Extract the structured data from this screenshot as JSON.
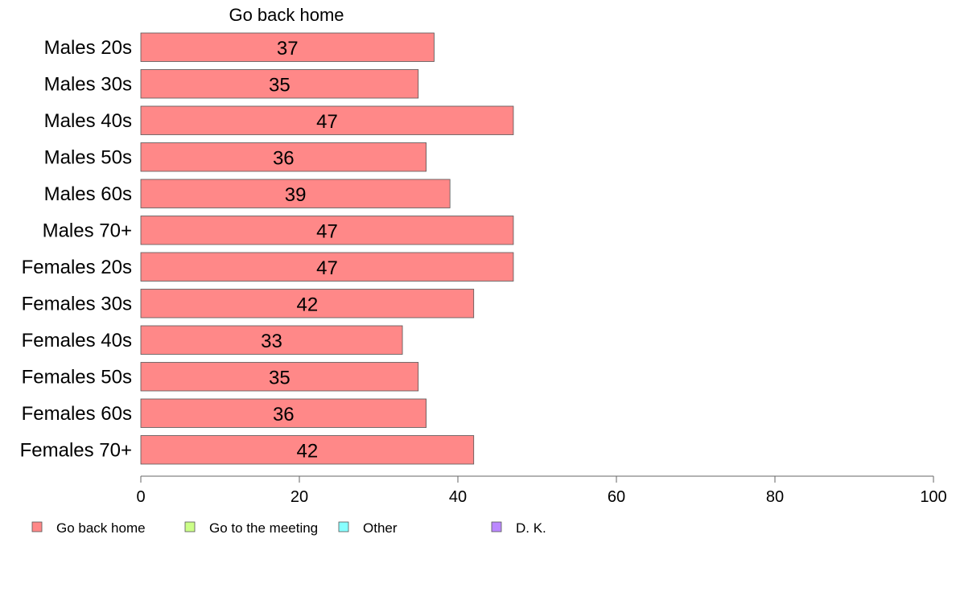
{
  "chart_data": {
    "type": "bar",
    "orientation": "horizontal",
    "categories": [
      "Males 20s",
      "Males 30s",
      "Males 40s",
      "Males 50s",
      "Males 60s",
      "Males 70+",
      "Females 20s",
      "Females 30s",
      "Females 40s",
      "Females 50s",
      "Females 60s",
      "Females 70+"
    ],
    "series": [
      {
        "name": "Go back home",
        "color": "#ff8888",
        "values": [
          37,
          35,
          47,
          36,
          39,
          47,
          47,
          42,
          33,
          35,
          36,
          42
        ]
      }
    ],
    "series_title": "Go back home",
    "xlim": [
      0,
      100
    ],
    "xticks": [
      0,
      20,
      40,
      60,
      80,
      100
    ],
    "grid": false,
    "legend": {
      "position": "bottom",
      "items": [
        {
          "label": "Go back home",
          "color": "#ff8888"
        },
        {
          "label": "Go to the meeting",
          "color": "#ccff88"
        },
        {
          "label": "Other",
          "color": "#88ffff"
        },
        {
          "label": "D. K.",
          "color": "#bb88ff"
        }
      ]
    }
  }
}
